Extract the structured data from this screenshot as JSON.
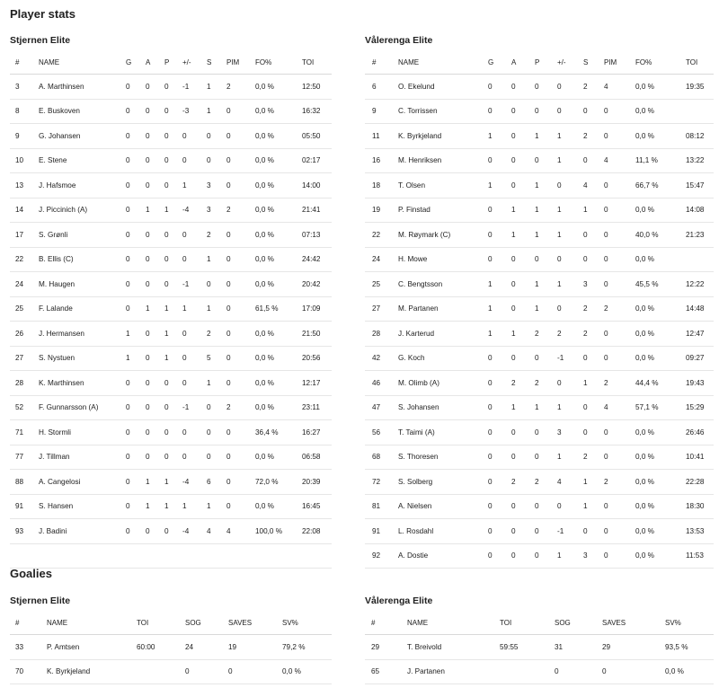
{
  "player_stats_title": "Player stats",
  "goalies_title": "Goalies",
  "teams": {
    "home": "Stjernen Elite",
    "away": "Vålerenga Elite"
  },
  "skater_headers": [
    "#",
    "NAME",
    "G",
    "A",
    "P",
    "+/-",
    "S",
    "PIM",
    "FO%",
    "TOI"
  ],
  "goalie_headers": [
    "#",
    "NAME",
    "TOI",
    "SOG",
    "SAVES",
    "SV%"
  ],
  "home_skaters": [
    [
      "3",
      "A. Marthinsen",
      "0",
      "0",
      "0",
      "-1",
      "1",
      "2",
      "0,0 %",
      "12:50"
    ],
    [
      "8",
      "E. Buskoven",
      "0",
      "0",
      "0",
      "-3",
      "1",
      "0",
      "0,0 %",
      "16:32"
    ],
    [
      "9",
      "G. Johansen",
      "0",
      "0",
      "0",
      "0",
      "0",
      "0",
      "0,0 %",
      "05:50"
    ],
    [
      "10",
      "E. Stene",
      "0",
      "0",
      "0",
      "0",
      "0",
      "0",
      "0,0 %",
      "02:17"
    ],
    [
      "13",
      "J. Hafsmoe",
      "0",
      "0",
      "0",
      "1",
      "3",
      "0",
      "0,0 %",
      "14:00"
    ],
    [
      "14",
      "J. Piccinich (A)",
      "0",
      "1",
      "1",
      "-4",
      "3",
      "2",
      "0,0 %",
      "21:41"
    ],
    [
      "17",
      "S. Grønli",
      "0",
      "0",
      "0",
      "0",
      "2",
      "0",
      "0,0 %",
      "07:13"
    ],
    [
      "22",
      "B. Ellis (C)",
      "0",
      "0",
      "0",
      "0",
      "1",
      "0",
      "0,0 %",
      "24:42"
    ],
    [
      "24",
      "M. Haugen",
      "0",
      "0",
      "0",
      "-1",
      "0",
      "0",
      "0,0 %",
      "20:42"
    ],
    [
      "25",
      "F. Lalande",
      "0",
      "1",
      "1",
      "1",
      "1",
      "0",
      "61,5 %",
      "17:09"
    ],
    [
      "26",
      "J. Hermansen",
      "1",
      "0",
      "1",
      "0",
      "2",
      "0",
      "0,0 %",
      "21:50"
    ],
    [
      "27",
      "S. Nystuen",
      "1",
      "0",
      "1",
      "0",
      "5",
      "0",
      "0,0 %",
      "20:56"
    ],
    [
      "28",
      "K. Marthinsen",
      "0",
      "0",
      "0",
      "0",
      "1",
      "0",
      "0,0 %",
      "12:17"
    ],
    [
      "52",
      "F. Gunnarsson (A)",
      "0",
      "0",
      "0",
      "-1",
      "0",
      "2",
      "0,0 %",
      "23:11"
    ],
    [
      "71",
      "H. Stormli",
      "0",
      "0",
      "0",
      "0",
      "0",
      "0",
      "36,4 %",
      "16:27"
    ],
    [
      "77",
      "J. Tillman",
      "0",
      "0",
      "0",
      "0",
      "0",
      "0",
      "0,0 %",
      "06:58"
    ],
    [
      "88",
      "A. Cangelosi",
      "0",
      "1",
      "1",
      "-4",
      "6",
      "0",
      "72,0 %",
      "20:39"
    ],
    [
      "91",
      "S. Hansen",
      "0",
      "1",
      "1",
      "1",
      "1",
      "0",
      "0,0 %",
      "16:45"
    ],
    [
      "93",
      "J. Badini",
      "0",
      "0",
      "0",
      "-4",
      "4",
      "4",
      "100,0 %",
      "22:08"
    ]
  ],
  "away_skaters": [
    [
      "6",
      "O. Ekelund",
      "0",
      "0",
      "0",
      "0",
      "2",
      "4",
      "0,0 %",
      "19:35"
    ],
    [
      "9",
      "C. Torrissen",
      "0",
      "0",
      "0",
      "0",
      "0",
      "0",
      "0,0 %",
      ""
    ],
    [
      "11",
      "K. Byrkjeland",
      "1",
      "0",
      "1",
      "1",
      "2",
      "0",
      "0,0 %",
      "08:12"
    ],
    [
      "16",
      "M. Henriksen",
      "0",
      "0",
      "0",
      "1",
      "0",
      "4",
      "11,1 %",
      "13:22"
    ],
    [
      "18",
      "T. Olsen",
      "1",
      "0",
      "1",
      "0",
      "4",
      "0",
      "66,7 %",
      "15:47"
    ],
    [
      "19",
      "P. Finstad",
      "0",
      "1",
      "1",
      "1",
      "1",
      "0",
      "0,0 %",
      "14:08"
    ],
    [
      "22",
      "M. Røymark (C)",
      "0",
      "1",
      "1",
      "1",
      "0",
      "0",
      "40,0 %",
      "21:23"
    ],
    [
      "24",
      "H. Mowe",
      "0",
      "0",
      "0",
      "0",
      "0",
      "0",
      "0,0 %",
      ""
    ],
    [
      "25",
      "C. Bengtsson",
      "1",
      "0",
      "1",
      "1",
      "3",
      "0",
      "45,5 %",
      "12:22"
    ],
    [
      "27",
      "M. Partanen",
      "1",
      "0",
      "1",
      "0",
      "2",
      "2",
      "0,0 %",
      "14:48"
    ],
    [
      "28",
      "J. Karterud",
      "1",
      "1",
      "2",
      "2",
      "2",
      "0",
      "0,0 %",
      "12:47"
    ],
    [
      "42",
      "G. Koch",
      "0",
      "0",
      "0",
      "-1",
      "0",
      "0",
      "0,0 %",
      "09:27"
    ],
    [
      "46",
      "M. Olimb (A)",
      "0",
      "2",
      "2",
      "0",
      "1",
      "2",
      "44,4 %",
      "19:43"
    ],
    [
      "47",
      "S. Johansen",
      "0",
      "1",
      "1",
      "1",
      "0",
      "4",
      "57,1 %",
      "15:29"
    ],
    [
      "56",
      "T. Taimi (A)",
      "0",
      "0",
      "0",
      "3",
      "0",
      "0",
      "0,0 %",
      "26:46"
    ],
    [
      "68",
      "S. Thoresen",
      "0",
      "0",
      "0",
      "1",
      "2",
      "0",
      "0,0 %",
      "10:41"
    ],
    [
      "72",
      "S. Solberg",
      "0",
      "2",
      "2",
      "4",
      "1",
      "2",
      "0,0 %",
      "22:28"
    ],
    [
      "81",
      "A. Nielsen",
      "0",
      "0",
      "0",
      "0",
      "1",
      "0",
      "0,0 %",
      "18:30"
    ],
    [
      "91",
      "L. Rosdahl",
      "0",
      "0",
      "0",
      "-1",
      "0",
      "0",
      "0,0 %",
      "13:53"
    ],
    [
      "92",
      "A. Dostie",
      "0",
      "0",
      "0",
      "1",
      "3",
      "0",
      "0,0 %",
      "11:53"
    ]
  ],
  "home_goalies": [
    [
      "33",
      "P. Amtsen",
      "60:00",
      "24",
      "19",
      "79,2 %"
    ],
    [
      "70",
      "K. Byrkjeland",
      "",
      "0",
      "0",
      "0,0 %"
    ]
  ],
  "away_goalies": [
    [
      "29",
      "T. Breivold",
      "59:55",
      "31",
      "29",
      "93,5 %"
    ],
    [
      "65",
      "J. Partanen",
      "",
      "0",
      "0",
      "0,0 %"
    ]
  ]
}
